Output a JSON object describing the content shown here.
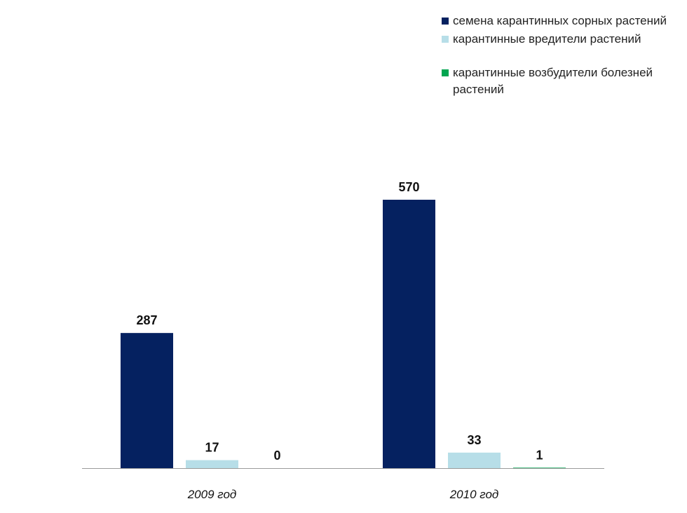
{
  "chart_data": {
    "type": "bar",
    "categories": [
      "2009 год",
      "2010 год"
    ],
    "series": [
      {
        "name": "семена карантинных сорных растений",
        "values": [
          287,
          570
        ],
        "color": "#052160"
      },
      {
        "name": "карантинные вредители растений",
        "values": [
          17,
          33
        ],
        "color": "#B7DEE8"
      },
      {
        "name": "карантинные возбудители болезней растений",
        "values": [
          0,
          1
        ],
        "color": "#00A550"
      }
    ],
    "ylim": [
      0,
      570
    ],
    "grid": false,
    "legend_position": "top-right",
    "data_labels": true
  }
}
